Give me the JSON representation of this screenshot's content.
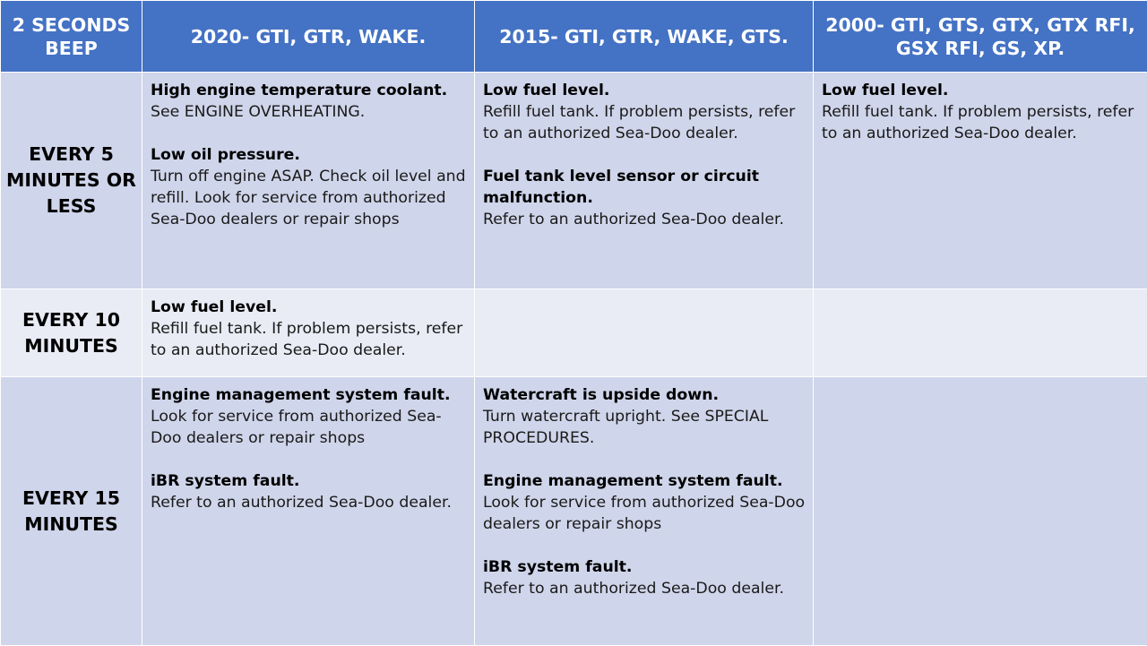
{
  "header": [
    "2 SECONDS BEEP",
    "2020- GTI, GTR, WAKE.",
    "2015- GTI, GTR, WAKE, GTS.",
    "2000- GTI, GTS, GTX, GTX RFI, GSX RFI, GS, XP."
  ],
  "rows": [
    {
      "label": "EVERY 5 MINUTES OR LESS",
      "cells": [
        [
          {
            "title": "High engine temperature coolant.",
            "text": "See ENGINE OVERHEATING."
          },
          {
            "title": "Low oil pressure.",
            "text": "Turn off engine ASAP. Check oil level and refill. Look for service from authorized Sea-Doo dealers or repair shops"
          }
        ],
        [
          {
            "title": "Low fuel level.",
            "text": "Refill fuel tank. If problem persists, refer to an authorized Sea-Doo dealer."
          },
          {
            "title": "Fuel tank level sensor or circuit malfunction.",
            "text": "Refer to an authorized Sea-Doo dealer."
          }
        ],
        [
          {
            "title": "Low fuel level.",
            "text": "Refill fuel tank. If problem persists, refer to an authorized Sea-Doo dealer."
          }
        ]
      ]
    },
    {
      "label": "EVERY 10 MINUTES",
      "cells": [
        [
          {
            "title": "Low fuel level.",
            "text": "Refill fuel tank. If problem persists, refer to an authorized Sea-Doo dealer."
          }
        ],
        [],
        []
      ]
    },
    {
      "label": "EVERY 15 MINUTES",
      "cells": [
        [
          {
            "title": "Engine management system fault.",
            "text": "Look for service from authorized Sea-Doo dealers or repair shops"
          },
          {
            "title": "iBR system fault.",
            "text": "Refer to an authorized Sea-Doo dealer."
          }
        ],
        [
          {
            "title": "Watercraft is upside down.",
            "text": "Turn watercraft upright. See SPECIAL PROCEDURES."
          },
          {
            "title": "Engine management system fault.",
            "text": "Look for service from authorized Sea-Doo dealers or repair shops"
          },
          {
            "title": "iBR system fault.",
            "text": "Refer to an authorized Sea-Doo dealer."
          }
        ],
        []
      ]
    }
  ]
}
